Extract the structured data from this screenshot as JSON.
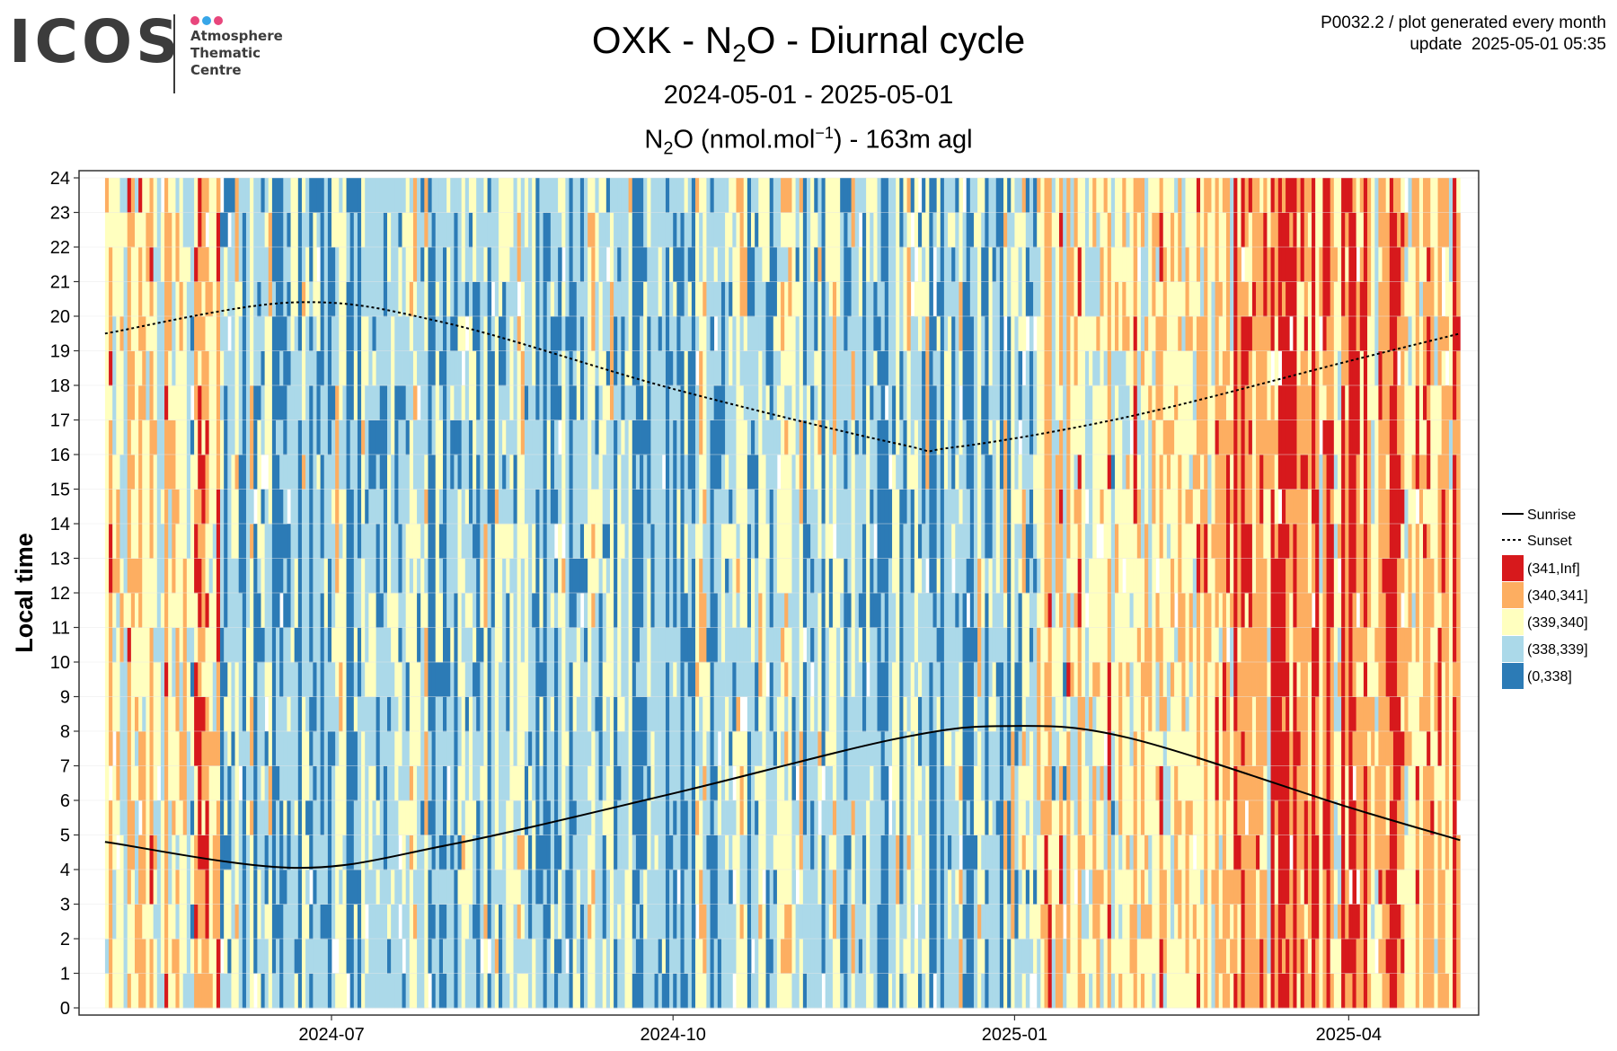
{
  "logo": {
    "wordmark": "ICOS",
    "lines": [
      "Atmosphere",
      "Thematic",
      "Centre"
    ],
    "dot_colors": [
      "#e8467c",
      "#37a6e8",
      "#e8467c"
    ]
  },
  "header": {
    "title_prefix": "OXK - N",
    "title_sub": "2",
    "title_suffix": "O - Diurnal cycle",
    "period": "2024-05-01 - 2025-05-01",
    "subtitle_prefix": "N",
    "subtitle_sub": "2",
    "subtitle_mid": "O (nmol.mol",
    "subtitle_sup": "−1",
    "subtitle_suffix": ") - 163m agl",
    "meta_line1": "P0032.2 / plot generated every month",
    "meta_line2": "update  2025-05-01 05:35"
  },
  "chart_data": {
    "type": "heatmap",
    "title": "OXK - N2O - Diurnal cycle",
    "subtitle": "N2O (nmol.mol-1) - 163m agl",
    "xlabel": "",
    "ylabel": "Local time",
    "x_start": "2024-05-01",
    "x_end": "2025-05-01",
    "xlim": [
      "2024-04-24",
      "2025-05-06"
    ],
    "ylim": [
      0,
      24
    ],
    "x_ticks": [
      "2024-07",
      "2024-10",
      "2025-01",
      "2025-04"
    ],
    "y_ticks": [
      0,
      1,
      2,
      3,
      4,
      5,
      6,
      7,
      8,
      9,
      10,
      11,
      12,
      13,
      14,
      15,
      16,
      17,
      18,
      19,
      20,
      21,
      22,
      23,
      24
    ],
    "grid": true,
    "legend_position": "right",
    "color_classes": [
      {
        "label": "(341,Inf]",
        "color": "#d7191c"
      },
      {
        "label": "(340,341]",
        "color": "#fdae61"
      },
      {
        "label": "(339,340]",
        "color": "#ffffbf"
      },
      {
        "label": "(338,339]",
        "color": "#abd9e9"
      },
      {
        "label": "(0,338]",
        "color": "#2c7bb6"
      }
    ],
    "monthly_dominant_class": [
      {
        "month": "2024-05",
        "class": "(339,340]"
      },
      {
        "month": "2024-06",
        "class": "(338,339]"
      },
      {
        "month": "2024-07",
        "class": "(338,339]"
      },
      {
        "month": "2024-08",
        "class": "(338,339]"
      },
      {
        "month": "2024-09",
        "class": "(338,339]"
      },
      {
        "month": "2024-10",
        "class": "(338,339]"
      },
      {
        "month": "2024-11",
        "class": "(338,339]"
      },
      {
        "month": "2024-12",
        "class": "(338,339]"
      },
      {
        "month": "2025-01",
        "class": "(339,340]"
      },
      {
        "month": "2025-02",
        "class": "(339,340]"
      },
      {
        "month": "2025-03",
        "class": "(340,341]"
      },
      {
        "month": "2025-04",
        "class": "(340,341]"
      }
    ],
    "series": [
      {
        "name": "Sunrise",
        "line_style": "solid",
        "x": [
          "2024-05-01",
          "2024-06-21",
          "2024-08-01",
          "2024-10-01",
          "2024-12-01",
          "2024-12-31",
          "2025-02-01",
          "2025-04-01",
          "2025-05-01"
        ],
        "values": [
          4.8,
          4.05,
          4.7,
          6.2,
          7.8,
          8.15,
          7.8,
          5.8,
          4.85
        ]
      },
      {
        "name": "Sunset",
        "line_style": "dashed",
        "x": [
          "2024-05-01",
          "2024-06-21",
          "2024-08-01",
          "2024-10-01",
          "2024-12-01",
          "2024-12-15",
          "2025-02-01",
          "2025-04-01",
          "2025-05-01"
        ],
        "values": [
          19.5,
          20.4,
          19.8,
          17.9,
          16.3,
          16.2,
          17.1,
          18.7,
          19.5
        ]
      }
    ]
  }
}
